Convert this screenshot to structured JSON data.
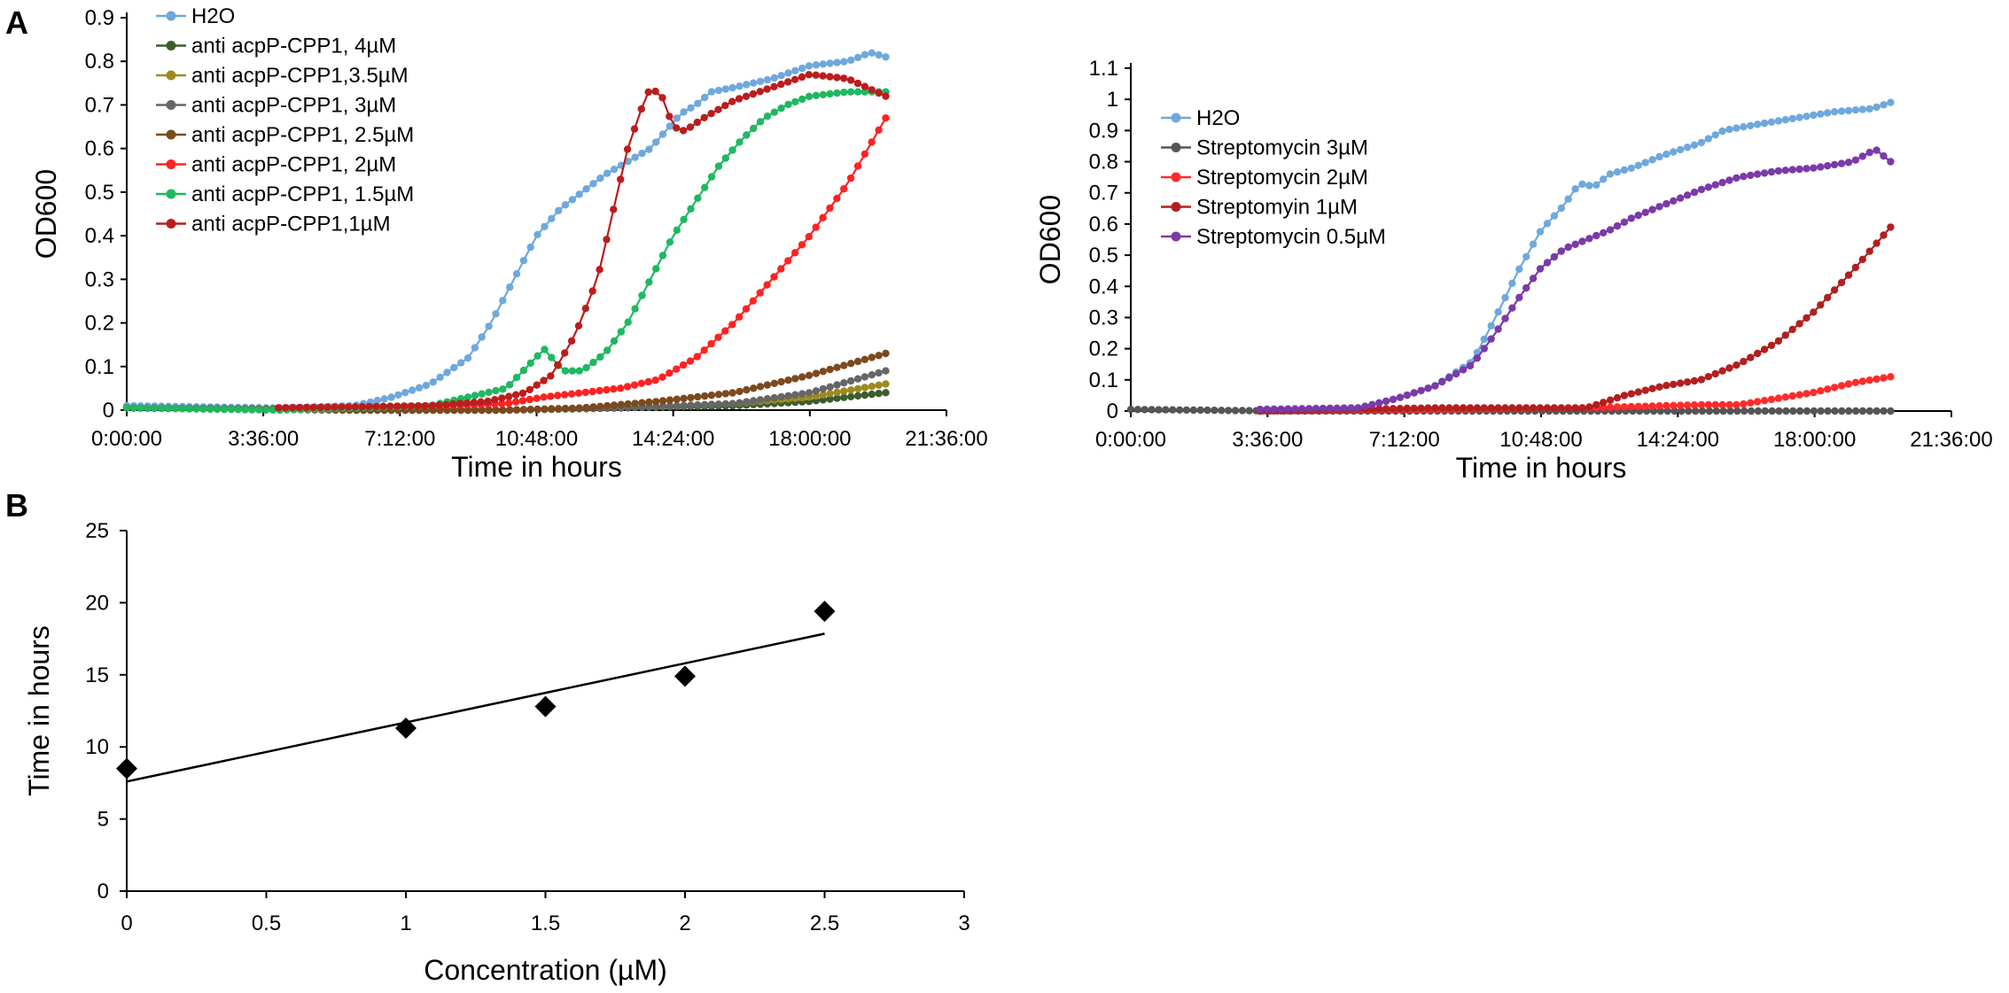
{
  "panel_labels": {
    "a": "A",
    "b": "B"
  },
  "chart_data": [
    {
      "id": "chartA1",
      "type": "line",
      "xlabel": "Time in hours",
      "ylabel": "OD600",
      "xlim": [
        0,
        21.6
      ],
      "ylim": [
        0,
        0.9
      ],
      "yticks": [
        "0",
        "0.1",
        "0.2",
        "0.3",
        "0.4",
        "0.5",
        "0.6",
        "0.7",
        "0.8",
        "0.9"
      ],
      "xticks": [
        {
          "label": "0:00:00",
          "value": 0
        },
        {
          "label": "3:36:00",
          "value": 3.6
        },
        {
          "label": "7:12:00",
          "value": 7.2
        },
        {
          "label": "10:48:00",
          "value": 10.8
        },
        {
          "label": "14:24:00",
          "value": 14.4
        },
        {
          "label": "18:00:00",
          "value": 18
        },
        {
          "label": "21:36:00",
          "value": 21.6
        }
      ],
      "legend_position": "top-left",
      "series": [
        {
          "name": "H2O",
          "color": "#6fa8dc",
          "points": [
            [
              0,
              0.01
            ],
            [
              4,
              0.005
            ],
            [
              6,
              0.01
            ],
            [
              7,
              0.03
            ],
            [
              8,
              0.06
            ],
            [
              9,
              0.12
            ],
            [
              9.6,
              0.2
            ],
            [
              10.2,
              0.3
            ],
            [
              10.8,
              0.4
            ],
            [
              11.4,
              0.46
            ],
            [
              12,
              0.5
            ],
            [
              12.6,
              0.54
            ],
            [
              13.2,
              0.57
            ],
            [
              13.8,
              0.6
            ],
            [
              14.2,
              0.64
            ],
            [
              14.6,
              0.68
            ],
            [
              15,
              0.7
            ],
            [
              15.4,
              0.73
            ],
            [
              16,
              0.74
            ],
            [
              17,
              0.76
            ],
            [
              18,
              0.79
            ],
            [
              19,
              0.8
            ],
            [
              19.6,
              0.82
            ],
            [
              20,
              0.81
            ]
          ]
        },
        {
          "name": "anti acpP-CPP1, 4µM",
          "color": "#3d5c2e",
          "points": [
            [
              0,
              0.005
            ],
            [
              6,
              0.0
            ],
            [
              10,
              0.0
            ],
            [
              13,
              0.005
            ],
            [
              16,
              0.01
            ],
            [
              18,
              0.02
            ],
            [
              20,
              0.04
            ]
          ]
        },
        {
          "name": "anti acpP-CPP1,3.5µM",
          "color": "#9c8a1f",
          "points": [
            [
              0,
              0.005
            ],
            [
              6,
              0.0
            ],
            [
              10,
              0.0
            ],
            [
              13,
              0.005
            ],
            [
              16,
              0.015
            ],
            [
              18,
              0.03
            ],
            [
              20,
              0.06
            ]
          ]
        },
        {
          "name": "anti acpP-CPP1, 3µM",
          "color": "#666666",
          "points": [
            [
              0,
              0.005
            ],
            [
              6,
              0.0
            ],
            [
              10,
              0.0
            ],
            [
              13,
              0.005
            ],
            [
              16,
              0.015
            ],
            [
              18,
              0.04
            ],
            [
              20,
              0.09
            ]
          ]
        },
        {
          "name": "anti acpP-CPP1, 2.5µM",
          "color": "#7a4a1e",
          "points": [
            [
              0,
              0.005
            ],
            [
              6,
              0.0
            ],
            [
              10,
              0.0
            ],
            [
              12,
              0.005
            ],
            [
              14,
              0.02
            ],
            [
              16,
              0.04
            ],
            [
              18,
              0.08
            ],
            [
              20,
              0.13
            ]
          ]
        },
        {
          "name": "anti acpP-CPP1, 2µM",
          "color": "#ff2222",
          "points": [
            [
              4,
              0.005
            ],
            [
              8,
              0.01
            ],
            [
              10,
              0.015
            ],
            [
              11,
              0.03
            ],
            [
              12,
              0.04
            ],
            [
              13,
              0.05
            ],
            [
              14,
              0.07
            ],
            [
              15,
              0.12
            ],
            [
              16,
              0.2
            ],
            [
              17,
              0.3
            ],
            [
              18,
              0.4
            ],
            [
              19,
              0.52
            ],
            [
              20,
              0.67
            ]
          ]
        },
        {
          "name": "anti acpP-CPP1, 1.5µM",
          "color": "#1fb860",
          "points": [
            [
              0,
              0.005
            ],
            [
              4,
              0.0
            ],
            [
              8,
              0.01
            ],
            [
              10,
              0.05
            ],
            [
              11,
              0.14
            ],
            [
              11.5,
              0.09
            ],
            [
              12,
              0.09
            ],
            [
              12.6,
              0.13
            ],
            [
              13.2,
              0.2
            ],
            [
              13.8,
              0.3
            ],
            [
              14.4,
              0.4
            ],
            [
              15,
              0.48
            ],
            [
              15.6,
              0.56
            ],
            [
              16.2,
              0.62
            ],
            [
              16.8,
              0.67
            ],
            [
              17.4,
              0.7
            ],
            [
              18,
              0.72
            ],
            [
              19,
              0.73
            ],
            [
              20,
              0.73
            ]
          ]
        },
        {
          "name": "anti acpP-CPP1,1µM",
          "color": "#bb1d1d",
          "points": [
            [
              4,
              0.005
            ],
            [
              8,
              0.01
            ],
            [
              9.5,
              0.02
            ],
            [
              10.5,
              0.04
            ],
            [
              11.2,
              0.08
            ],
            [
              11.8,
              0.17
            ],
            [
              12.4,
              0.3
            ],
            [
              12.8,
              0.45
            ],
            [
              13.2,
              0.6
            ],
            [
              13.6,
              0.7
            ],
            [
              13.8,
              0.74
            ],
            [
              14.1,
              0.72
            ],
            [
              14.4,
              0.65
            ],
            [
              14.7,
              0.64
            ],
            [
              15.2,
              0.67
            ],
            [
              16,
              0.71
            ],
            [
              17,
              0.74
            ],
            [
              18,
              0.77
            ],
            [
              19,
              0.76
            ],
            [
              20,
              0.72
            ]
          ]
        }
      ]
    },
    {
      "id": "chartA2",
      "type": "line",
      "xlabel": "Time in hours",
      "ylabel": "OD600",
      "xlim": [
        0,
        21.6
      ],
      "ylim": [
        0,
        1.1
      ],
      "yticks": [
        "0",
        "0.1",
        "0.2",
        "0.3",
        "0.4",
        "0.5",
        "0.6",
        "0.7",
        "0.8",
        "0.9",
        "1",
        "1.1"
      ],
      "xticks": [
        {
          "label": "0:00:00",
          "value": 0
        },
        {
          "label": "3:36:00",
          "value": 3.6
        },
        {
          "label": "7:12:00",
          "value": 7.2
        },
        {
          "label": "10:48:00",
          "value": 10.8
        },
        {
          "label": "14:24:00",
          "value": 14.4
        },
        {
          "label": "18:00:00",
          "value": 18
        },
        {
          "label": "21:36:00",
          "value": 21.6
        }
      ],
      "legend_position": "top-left",
      "series": [
        {
          "name": "H2O",
          "color": "#6fa8dc",
          "points": [
            [
              3.4,
              0.005
            ],
            [
              6,
              0.01
            ],
            [
              7,
              0.04
            ],
            [
              8,
              0.08
            ],
            [
              9,
              0.16
            ],
            [
              9.6,
              0.3
            ],
            [
              10.2,
              0.45
            ],
            [
              10.8,
              0.58
            ],
            [
              11.4,
              0.66
            ],
            [
              11.8,
              0.73
            ],
            [
              12.2,
              0.72
            ],
            [
              12.6,
              0.76
            ],
            [
              13.2,
              0.78
            ],
            [
              14,
              0.82
            ],
            [
              15,
              0.86
            ],
            [
              15.6,
              0.9
            ],
            [
              16.5,
              0.92
            ],
            [
              17.5,
              0.94
            ],
            [
              18.5,
              0.96
            ],
            [
              19.5,
              0.97
            ],
            [
              20,
              0.99
            ]
          ]
        },
        {
          "name": "Streptomycin 3µM",
          "color": "#555555",
          "points": [
            [
              0,
              0.005
            ],
            [
              4,
              0.0
            ],
            [
              10,
              0.0
            ],
            [
              16,
              0.0
            ],
            [
              20,
              0.0
            ]
          ]
        },
        {
          "name": "Streptomycin 2µM",
          "color": "#ff2b2b",
          "points": [
            [
              3.4,
              0.0
            ],
            [
              8,
              0.005
            ],
            [
              12,
              0.01
            ],
            [
              15,
              0.02
            ],
            [
              16,
              0.02
            ],
            [
              17,
              0.04
            ],
            [
              18,
              0.06
            ],
            [
              19,
              0.09
            ],
            [
              20,
              0.11
            ]
          ]
        },
        {
          "name": "Streptomyin 1µM",
          "color": "#b21f1f",
          "points": [
            [
              3.4,
              0.0
            ],
            [
              8,
              0.01
            ],
            [
              11,
              0.01
            ],
            [
              12,
              0.01
            ],
            [
              13,
              0.05
            ],
            [
              14,
              0.08
            ],
            [
              15,
              0.1
            ],
            [
              16,
              0.15
            ],
            [
              17,
              0.22
            ],
            [
              18,
              0.32
            ],
            [
              19,
              0.45
            ],
            [
              20,
              0.59
            ]
          ]
        },
        {
          "name": "Streptomycin 0.5µM",
          "color": "#7a3aa8",
          "points": [
            [
              3.4,
              0.005
            ],
            [
              6,
              0.01
            ],
            [
              7,
              0.04
            ],
            [
              8,
              0.08
            ],
            [
              9,
              0.15
            ],
            [
              9.6,
              0.25
            ],
            [
              10.2,
              0.36
            ],
            [
              10.8,
              0.46
            ],
            [
              11.4,
              0.52
            ],
            [
              12,
              0.55
            ],
            [
              12.6,
              0.58
            ],
            [
              13.2,
              0.62
            ],
            [
              14,
              0.66
            ],
            [
              15,
              0.71
            ],
            [
              16,
              0.75
            ],
            [
              17,
              0.77
            ],
            [
              18,
              0.78
            ],
            [
              19,
              0.8
            ],
            [
              19.6,
              0.84
            ],
            [
              20,
              0.8
            ]
          ]
        }
      ]
    },
    {
      "id": "chartB",
      "type": "scatter",
      "xlabel": "Concentration (µM)",
      "ylabel": "Time in hours",
      "xlim": [
        0,
        3
      ],
      "ylim": [
        0,
        25
      ],
      "xticks": [
        "0",
        "0.5",
        "1",
        "1.5",
        "2",
        "2.5",
        "3"
      ],
      "yticks": [
        "0",
        "5",
        "10",
        "15",
        "20",
        "25"
      ],
      "points": [
        [
          0,
          8.5
        ],
        [
          1,
          11.3
        ],
        [
          1.5,
          12.8
        ],
        [
          2,
          14.9
        ],
        [
          2.5,
          19.4
        ]
      ],
      "trendline": {
        "intercept": 7.6,
        "slope": 4.1,
        "x_range": [
          0,
          2.5
        ]
      }
    }
  ]
}
